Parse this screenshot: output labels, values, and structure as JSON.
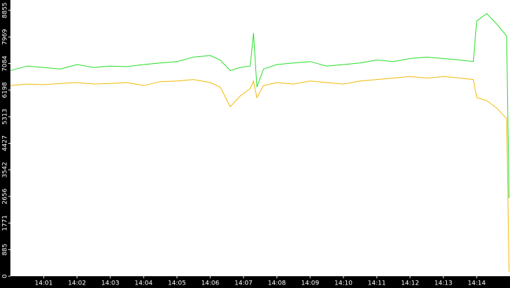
{
  "chart_data": {
    "type": "line",
    "x": [
      0,
      0.5,
      1,
      1.5,
      2,
      2.5,
      3,
      3.5,
      4,
      4.5,
      5,
      5.5,
      6,
      6.3,
      6.6,
      6.9,
      7.2,
      7.3,
      7.4,
      7.6,
      8,
      8.5,
      9,
      9.5,
      10,
      10.5,
      11,
      11.5,
      12,
      12.5,
      13,
      13.5,
      13.9,
      14,
      14.3,
      14.6,
      14.9,
      14.97
    ],
    "series": [
      {
        "color": "#22dd22",
        "values": [
          6850,
          7000,
          6950,
          6900,
          7050,
          6950,
          7000,
          6980,
          7050,
          7100,
          7150,
          7300,
          7350,
          7200,
          6850,
          6950,
          7000,
          8100,
          6300,
          6900,
          7050,
          7100,
          7150,
          7000,
          7050,
          7100,
          7200,
          7150,
          7250,
          7300,
          7250,
          7200,
          7150,
          8500,
          8750,
          8400,
          8000,
          2600
        ]
      },
      {
        "color": "#f2b800",
        "values": [
          6350,
          6400,
          6380,
          6420,
          6450,
          6400,
          6420,
          6450,
          6350,
          6480,
          6500,
          6550,
          6450,
          6300,
          5650,
          6000,
          6250,
          6500,
          5950,
          6350,
          6450,
          6400,
          6500,
          6450,
          6400,
          6500,
          6550,
          6600,
          6650,
          6600,
          6650,
          6600,
          6550,
          5950,
          5850,
          5600,
          5250,
          150
        ]
      }
    ],
    "xlim": [
      0,
      15
    ],
    "xticks": [
      {
        "value": 1,
        "label": "14:01"
      },
      {
        "value": 2,
        "label": "14:02"
      },
      {
        "value": 3,
        "label": "14:03"
      },
      {
        "value": 4,
        "label": "14:04"
      },
      {
        "value": 5,
        "label": "14:05"
      },
      {
        "value": 6,
        "label": "14:06"
      },
      {
        "value": 7,
        "label": "14:07"
      },
      {
        "value": 8,
        "label": "14:08"
      },
      {
        "value": 9,
        "label": "14:09"
      },
      {
        "value": 10,
        "label": "14:10"
      },
      {
        "value": 11,
        "label": "14:11"
      },
      {
        "value": 12,
        "label": "14:12"
      },
      {
        "value": 13,
        "label": "14:13"
      },
      {
        "value": 14,
        "label": "14:14"
      }
    ],
    "ylim": [
      0,
      9200
    ],
    "yticks": [
      0,
      885,
      1771,
      2656,
      3542,
      4427,
      5313,
      6198,
      7084,
      7969,
      8855
    ]
  }
}
